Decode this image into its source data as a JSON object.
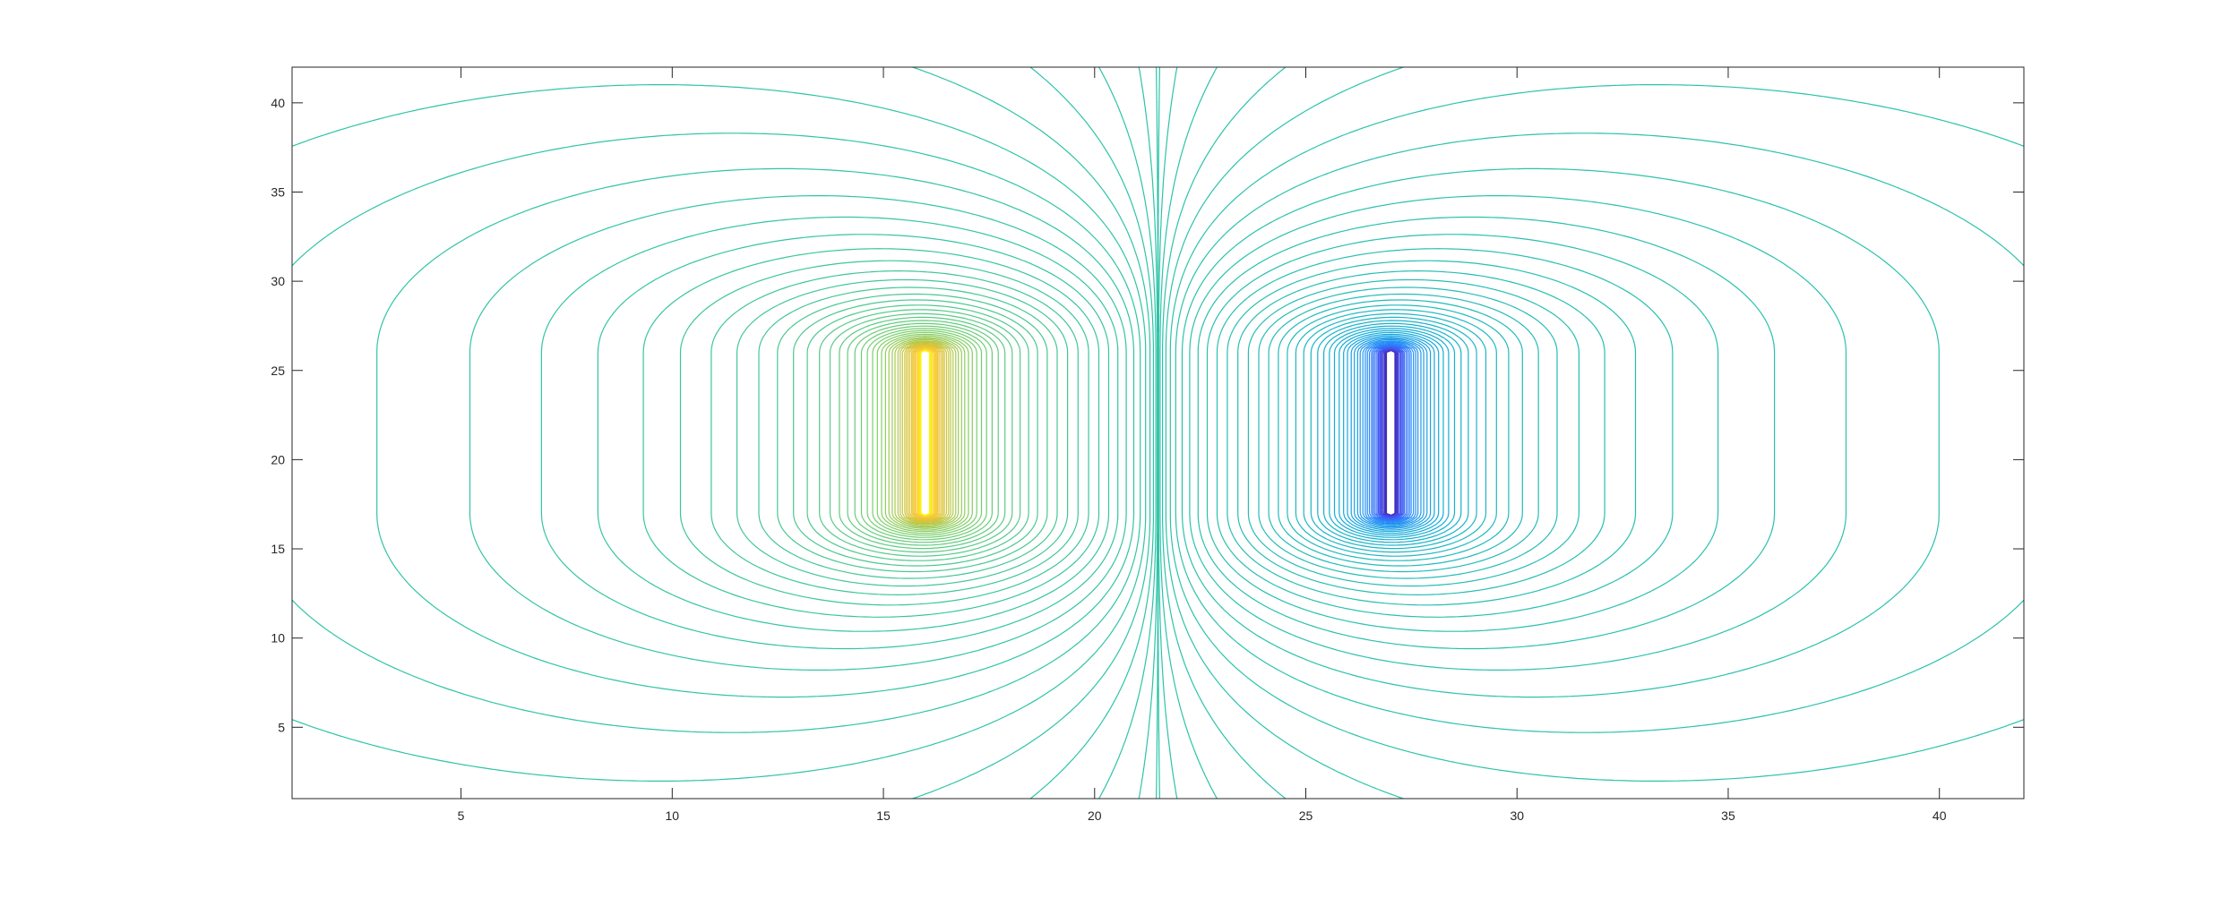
{
  "chart_data": {
    "type": "contour",
    "title": "",
    "xlabel": "",
    "ylabel": "",
    "xlim": [
      1,
      42
    ],
    "ylim": [
      1,
      42
    ],
    "x_ticks": [
      5,
      10,
      15,
      20,
      25,
      30,
      35,
      40
    ],
    "y_ticks": [
      5,
      10,
      15,
      20,
      25,
      30,
      35,
      40
    ],
    "x_tick_labels": [
      "5",
      "10",
      "15",
      "20",
      "25",
      "30",
      "35",
      "40"
    ],
    "y_tick_labels": [
      "5",
      "10",
      "15",
      "20",
      "25",
      "30",
      "35",
      "40"
    ],
    "grid": false,
    "legend": "none",
    "colormap": "parula",
    "sources": [
      {
        "name": "",
        "x": 16,
        "y_min": 17,
        "y_max": 26,
        "polarity": "positive"
      },
      {
        "name": "",
        "x": 27,
        "y_min": 17,
        "y_max": 26,
        "polarity": "negative"
      }
    ],
    "level_count": 100,
    "colors": {
      "positive_peak": "#f9fb0e",
      "positive_mid": "#fbb02d",
      "neutral": "#2cb8b6",
      "negative_mid": "#3a6ff5",
      "negative_peak": "#3e26a8"
    }
  }
}
